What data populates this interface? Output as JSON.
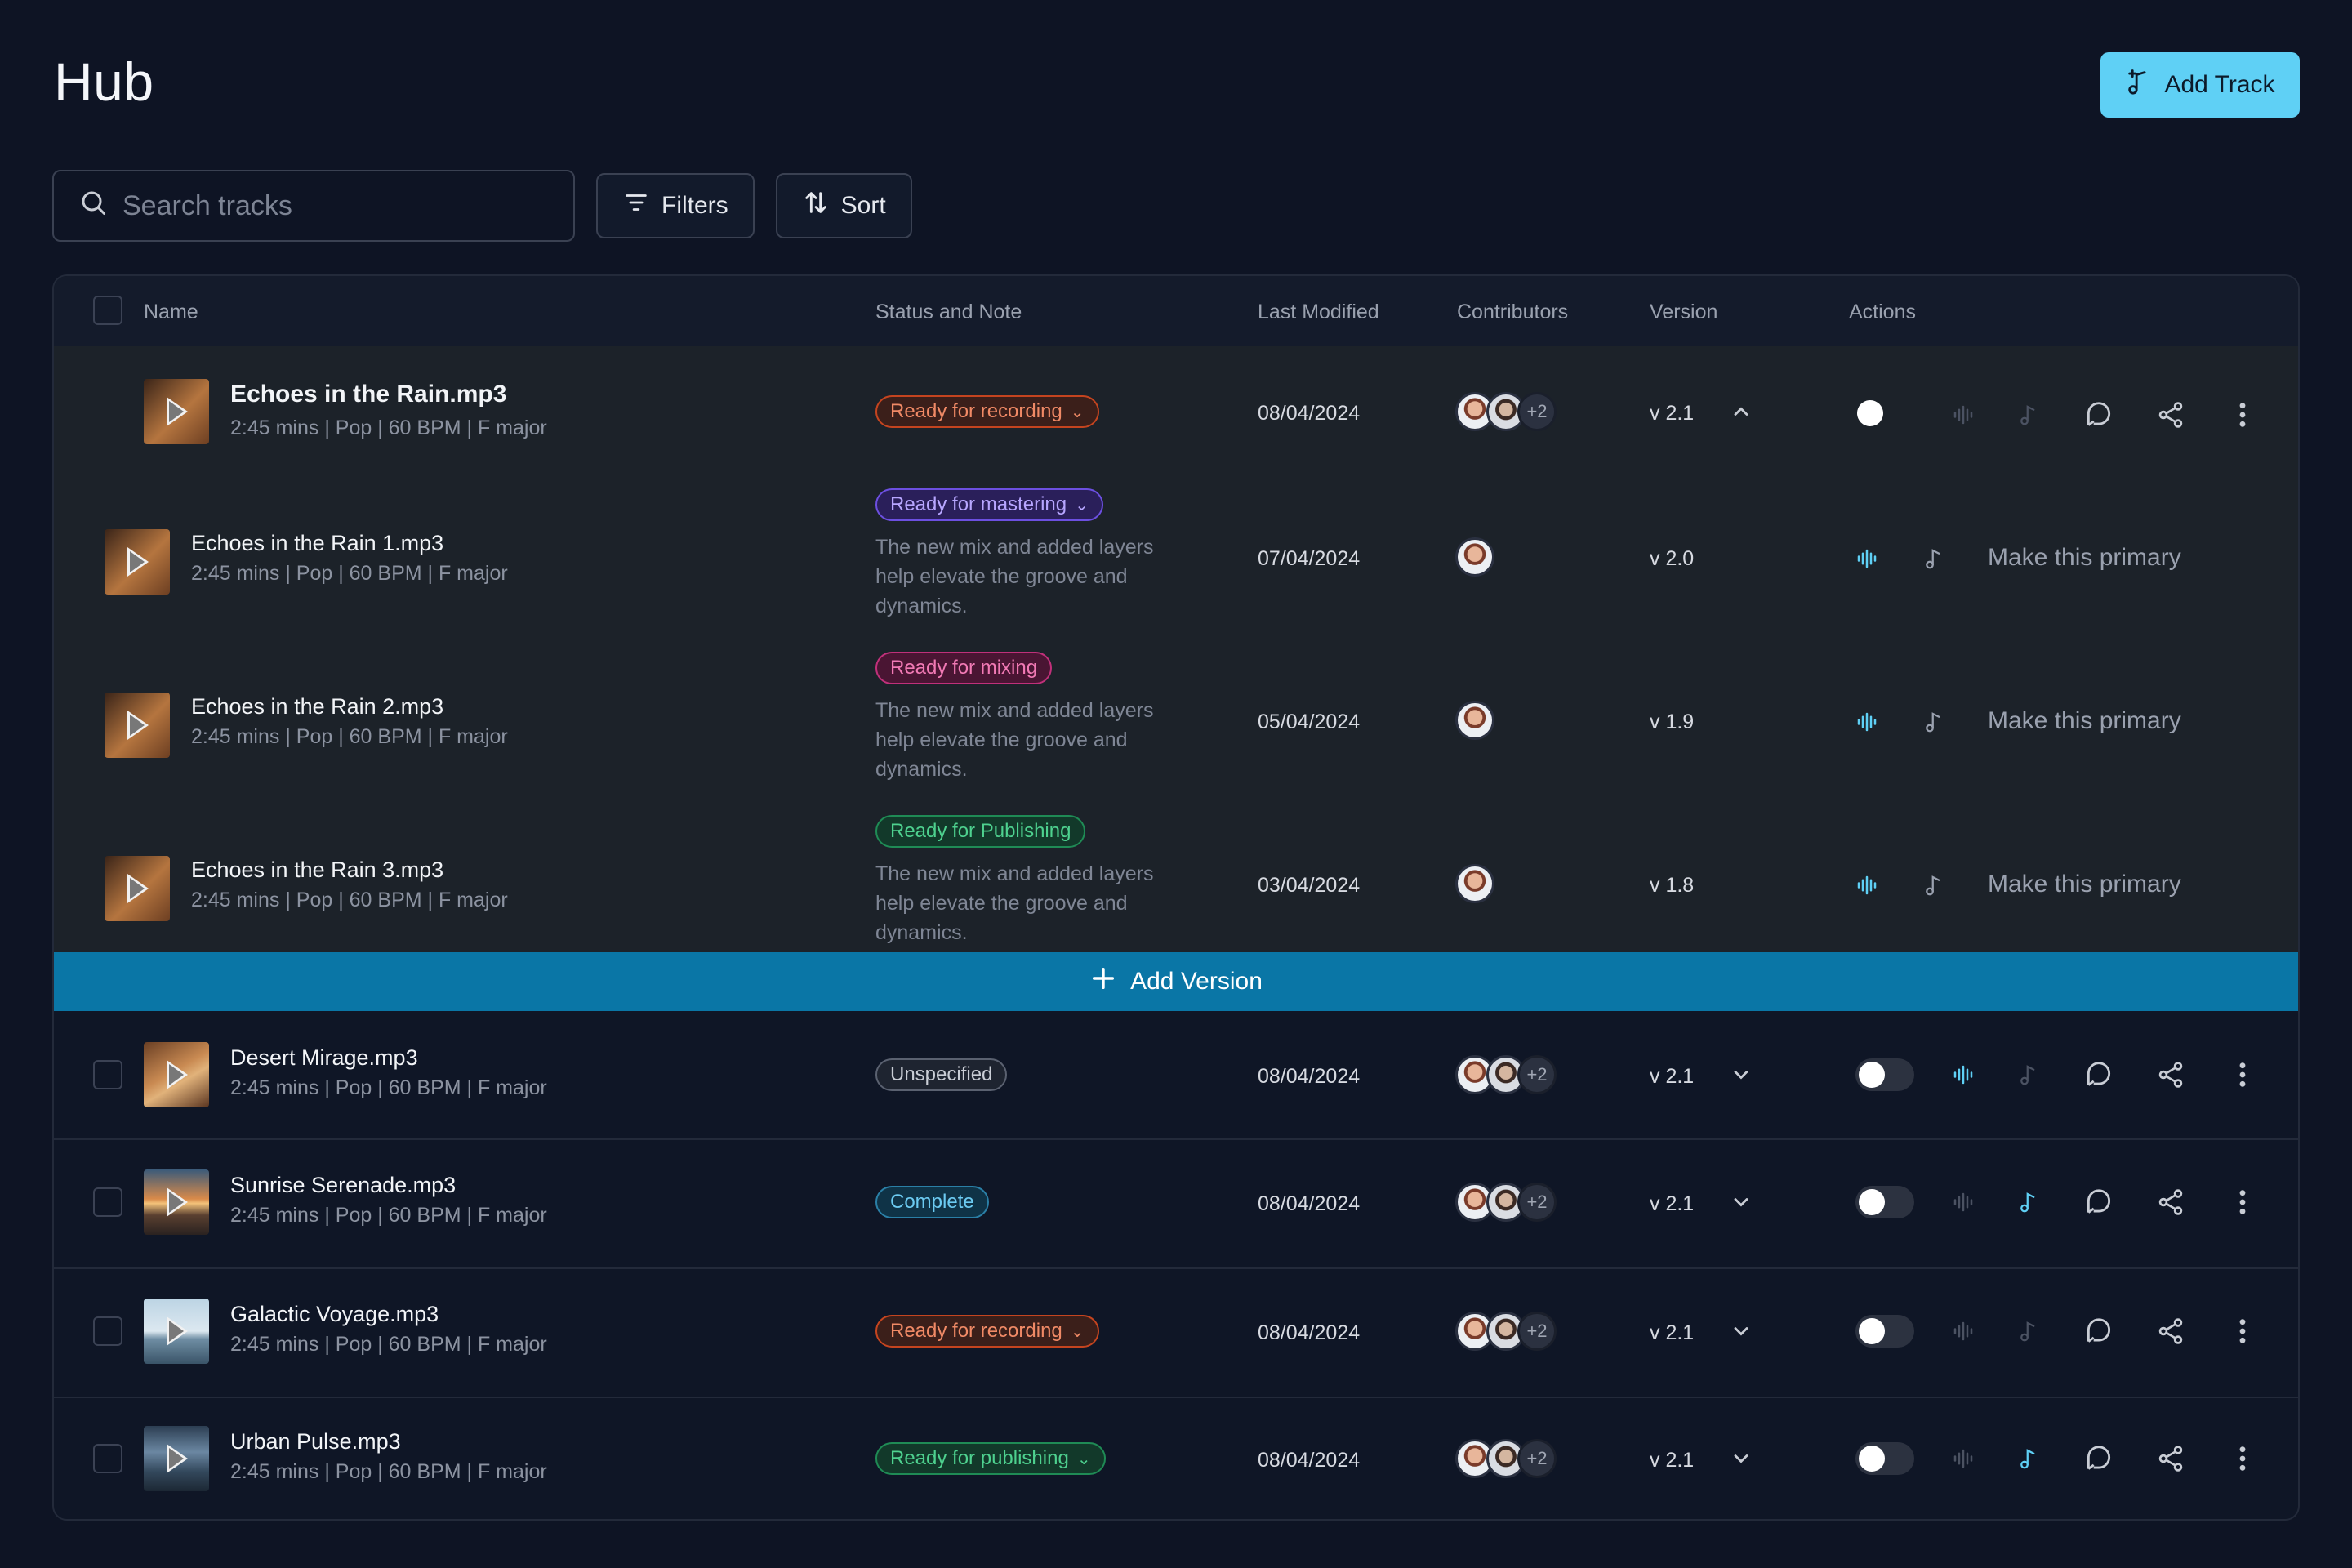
{
  "page": {
    "title": "Hub"
  },
  "header": {
    "add_track_label": "Add Track"
  },
  "toolbar": {
    "search_placeholder": "Search tracks",
    "filters_label": "Filters",
    "sort_label": "Sort"
  },
  "table": {
    "columns": {
      "name": "Name",
      "status": "Status and Note",
      "modified": "Last Modified",
      "contributors": "Contributors",
      "version": "Version",
      "actions": "Actions"
    }
  },
  "primary_track": {
    "name": "Echoes in the Rain.mp3",
    "meta": "2:45 mins | Pop | 60 BPM | F major",
    "status": "Ready for recording",
    "modified": "08/04/2024",
    "more_contributors": "+2",
    "version": "v 2.1"
  },
  "versions": [
    {
      "name": "Echoes in the Rain 1.mp3",
      "meta": "2:45 mins | Pop | 60 BPM | F major",
      "status": "Ready for mastering",
      "note": "The new mix and added layers help elevate the groove and dynamics.",
      "modified": "07/04/2024",
      "version": "v 2.0",
      "action": "Make this primary"
    },
    {
      "name": "Echoes in the Rain 2.mp3",
      "meta": "2:45 mins | Pop | 60 BPM | F major",
      "status": "Ready for mixing",
      "note": "The new mix and added layers help elevate the groove and dynamics.",
      "modified": "05/04/2024",
      "version": "v 1.9",
      "action": "Make this primary"
    },
    {
      "name": "Echoes in the Rain 3.mp3",
      "meta": "2:45 mins | Pop | 60 BPM | F major",
      "status": "Ready for Publishing",
      "note": "The new mix and added layers help elevate the groove and dynamics.",
      "modified": "03/04/2024",
      "version": "v 1.8",
      "action": "Make this primary"
    }
  ],
  "add_version_label": "Add Version",
  "tracks": [
    {
      "name": "Desert Mirage.mp3",
      "meta": "2:45 mins | Pop | 60 BPM | F major",
      "status": "Unspecified",
      "modified": "08/04/2024",
      "more_contributors": "+2",
      "version": "v 2.1"
    },
    {
      "name": "Sunrise Serenade.mp3",
      "meta": "2:45 mins | Pop | 60 BPM | F major",
      "status": "Complete",
      "modified": "08/04/2024",
      "more_contributors": "+2",
      "version": "v 2.1"
    },
    {
      "name": "Galactic Voyage.mp3",
      "meta": "2:45 mins | Pop | 60 BPM | F major",
      "status": "Ready for recording",
      "modified": "08/04/2024",
      "more_contributors": "+2",
      "version": "v 2.1"
    },
    {
      "name": "Urban Pulse.mp3",
      "meta": "2:45 mins | Pop | 60 BPM | F major",
      "status": "Ready for publishing",
      "modified": "08/04/2024",
      "more_contributors": "+2",
      "version": "v 2.1"
    }
  ],
  "colors": {
    "accent": "#5fd0f5",
    "add_version_bar": "#0a76a6",
    "background": "#0e1424"
  }
}
